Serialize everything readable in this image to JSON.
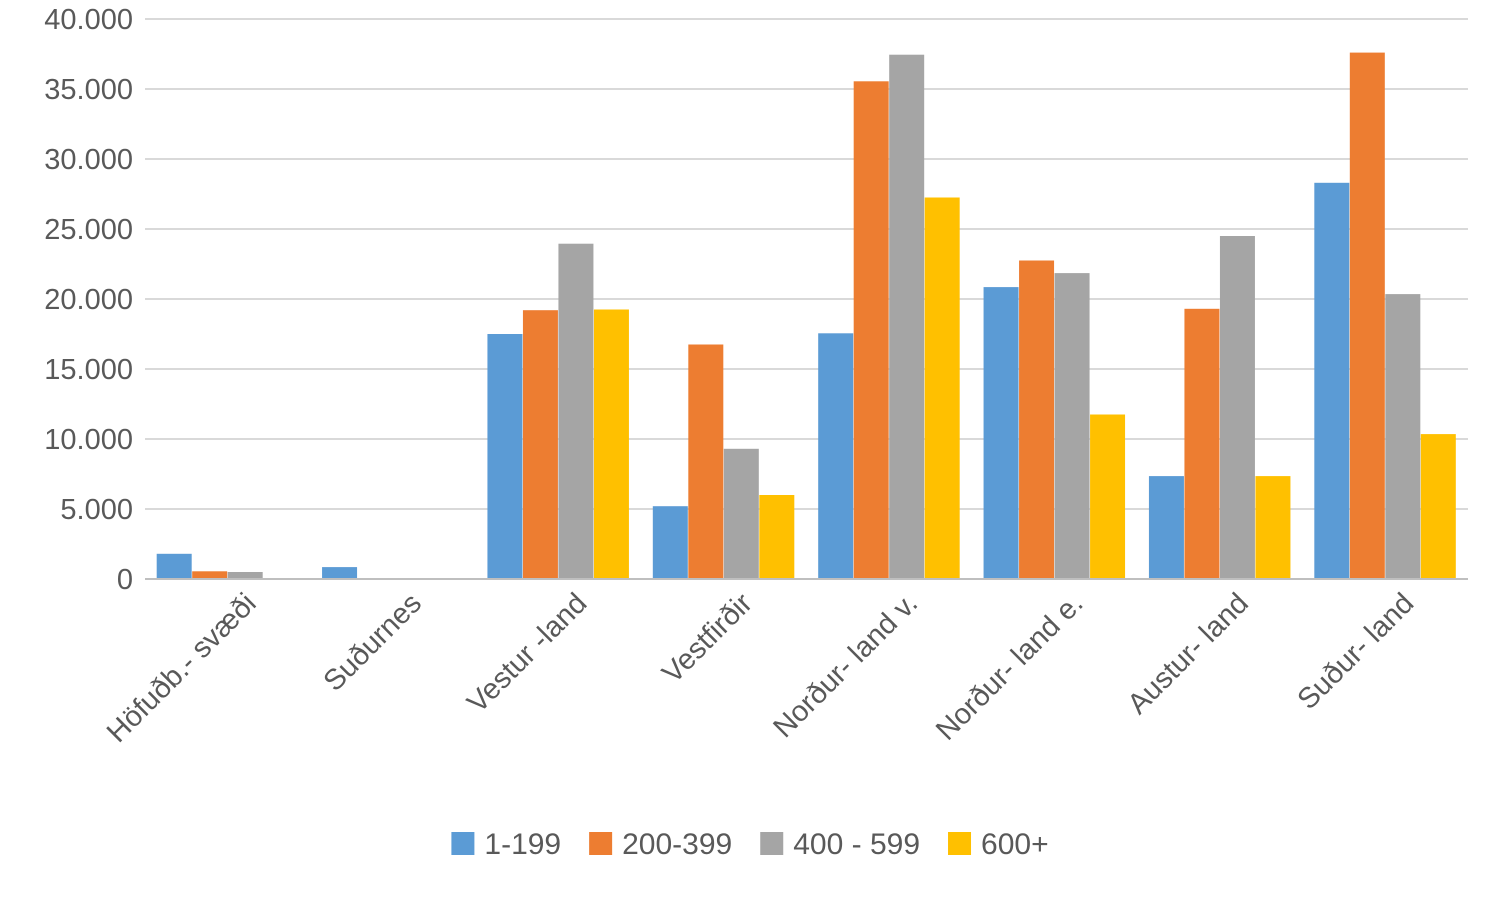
{
  "chart_data": {
    "type": "bar",
    "categories": [
      "Höfuðb.- svæði",
      "Suðurnes",
      "Vestur -land",
      "Vestfirðir",
      "Norður- land v.",
      "Norður- land e.",
      "Austur- land",
      "Suður- land"
    ],
    "series": [
      {
        "name": "1-199",
        "color": "#5b9bd5",
        "values": [
          1800,
          850,
          17500,
          5200,
          17550,
          20850,
          7350,
          28300
        ]
      },
      {
        "name": "200-399",
        "color": "#ed7d31",
        "values": [
          550,
          0,
          19200,
          16750,
          35550,
          22750,
          19300,
          37600
        ]
      },
      {
        "name": "400 - 599",
        "color": "#a5a5a5",
        "values": [
          500,
          0,
          23950,
          9300,
          37450,
          21850,
          24500,
          20350
        ]
      },
      {
        "name": "600+",
        "color": "#ffc000",
        "values": [
          0,
          0,
          19250,
          6000,
          27250,
          11750,
          7350,
          10350
        ]
      }
    ],
    "ylim": [
      0,
      40000
    ],
    "yticks": [
      0,
      5000,
      10000,
      15000,
      20000,
      25000,
      30000,
      35000,
      40000
    ],
    "ytick_labels": [
      "0",
      "5.000",
      "10.000",
      "15.000",
      "20.000",
      "25.000",
      "30.000",
      "35.000",
      "40.000"
    ],
    "grid": true,
    "legend_position": "bottom"
  }
}
